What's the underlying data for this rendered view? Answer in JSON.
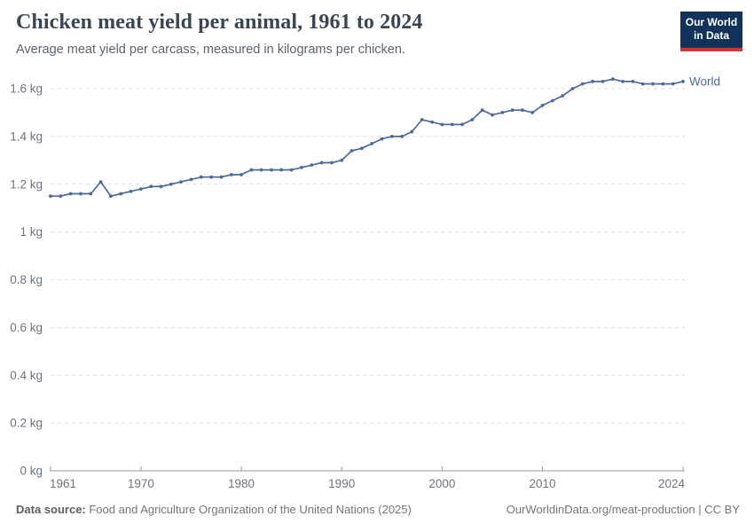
{
  "header": {
    "title": "Chicken meat yield per animal, 1961 to 2024",
    "subtitle": "Average meat yield per carcass, measured in kilograms per chicken.",
    "logo": {
      "line1": "Our World",
      "line2": "in Data"
    }
  },
  "chart_data": {
    "type": "line",
    "title": "Chicken meat yield per animal, 1961 to 2024",
    "xlabel": "",
    "ylabel": "kilograms per chicken",
    "xlim": [
      1961,
      2024
    ],
    "ylim": [
      0,
      1.6
    ],
    "grid": "horizontal-dashed",
    "legend_position": "end-of-line-label",
    "x_ticks": [
      1961,
      1970,
      1980,
      1990,
      2000,
      2010,
      2024
    ],
    "y_ticks": [
      {
        "value": 0,
        "label": "0 kg"
      },
      {
        "value": 0.2,
        "label": "0.2 kg"
      },
      {
        "value": 0.4,
        "label": "0.4 kg"
      },
      {
        "value": 0.6,
        "label": "0.6 kg"
      },
      {
        "value": 0.8,
        "label": "0.8 kg"
      },
      {
        "value": 1,
        "label": "1 kg"
      },
      {
        "value": 1.2,
        "label": "1.2 kg"
      },
      {
        "value": 1.4,
        "label": "1.4 kg"
      },
      {
        "value": 1.6,
        "label": "1.6 kg"
      }
    ],
    "series": [
      {
        "name": "World",
        "color": "#4C6A9C",
        "x": [
          1961,
          1962,
          1963,
          1964,
          1965,
          1966,
          1967,
          1968,
          1969,
          1970,
          1971,
          1972,
          1973,
          1974,
          1975,
          1976,
          1977,
          1978,
          1979,
          1980,
          1981,
          1982,
          1983,
          1984,
          1985,
          1986,
          1987,
          1988,
          1989,
          1990,
          1991,
          1992,
          1993,
          1994,
          1995,
          1996,
          1997,
          1998,
          1999,
          2000,
          2001,
          2002,
          2003,
          2004,
          2005,
          2006,
          2007,
          2008,
          2009,
          2010,
          2011,
          2012,
          2013,
          2014,
          2015,
          2016,
          2017,
          2018,
          2019,
          2020,
          2021,
          2022,
          2023,
          2024
        ],
        "values": [
          1.15,
          1.15,
          1.16,
          1.16,
          1.16,
          1.21,
          1.15,
          1.16,
          1.17,
          1.18,
          1.19,
          1.19,
          1.2,
          1.21,
          1.22,
          1.23,
          1.23,
          1.23,
          1.24,
          1.24,
          1.26,
          1.26,
          1.26,
          1.26,
          1.26,
          1.27,
          1.28,
          1.29,
          1.29,
          1.3,
          1.34,
          1.35,
          1.37,
          1.39,
          1.4,
          1.4,
          1.42,
          1.47,
          1.46,
          1.45,
          1.45,
          1.45,
          1.47,
          1.51,
          1.49,
          1.5,
          1.51,
          1.51,
          1.5,
          1.53,
          1.55,
          1.57,
          1.6,
          1.62,
          1.63,
          1.63,
          1.64,
          1.63,
          1.63,
          1.62,
          1.62,
          1.62,
          1.62,
          1.63
        ]
      }
    ]
  },
  "colors": {
    "line": "#4C6A9C",
    "grid": "#dcdcdc",
    "axis": "#9c9c9c",
    "tick_label": "#6e7380",
    "title": "#3a4652",
    "subtitle": "#5b6470",
    "footer": "#757575",
    "logo_bg": "#12325c",
    "logo_bar": "#d8352f"
  },
  "footer": {
    "source_label": "Data source:",
    "source_text": " Food and Agriculture Organization of the United Nations (2025)",
    "credit": "OurWorldinData.org/meat-production | CC BY"
  }
}
